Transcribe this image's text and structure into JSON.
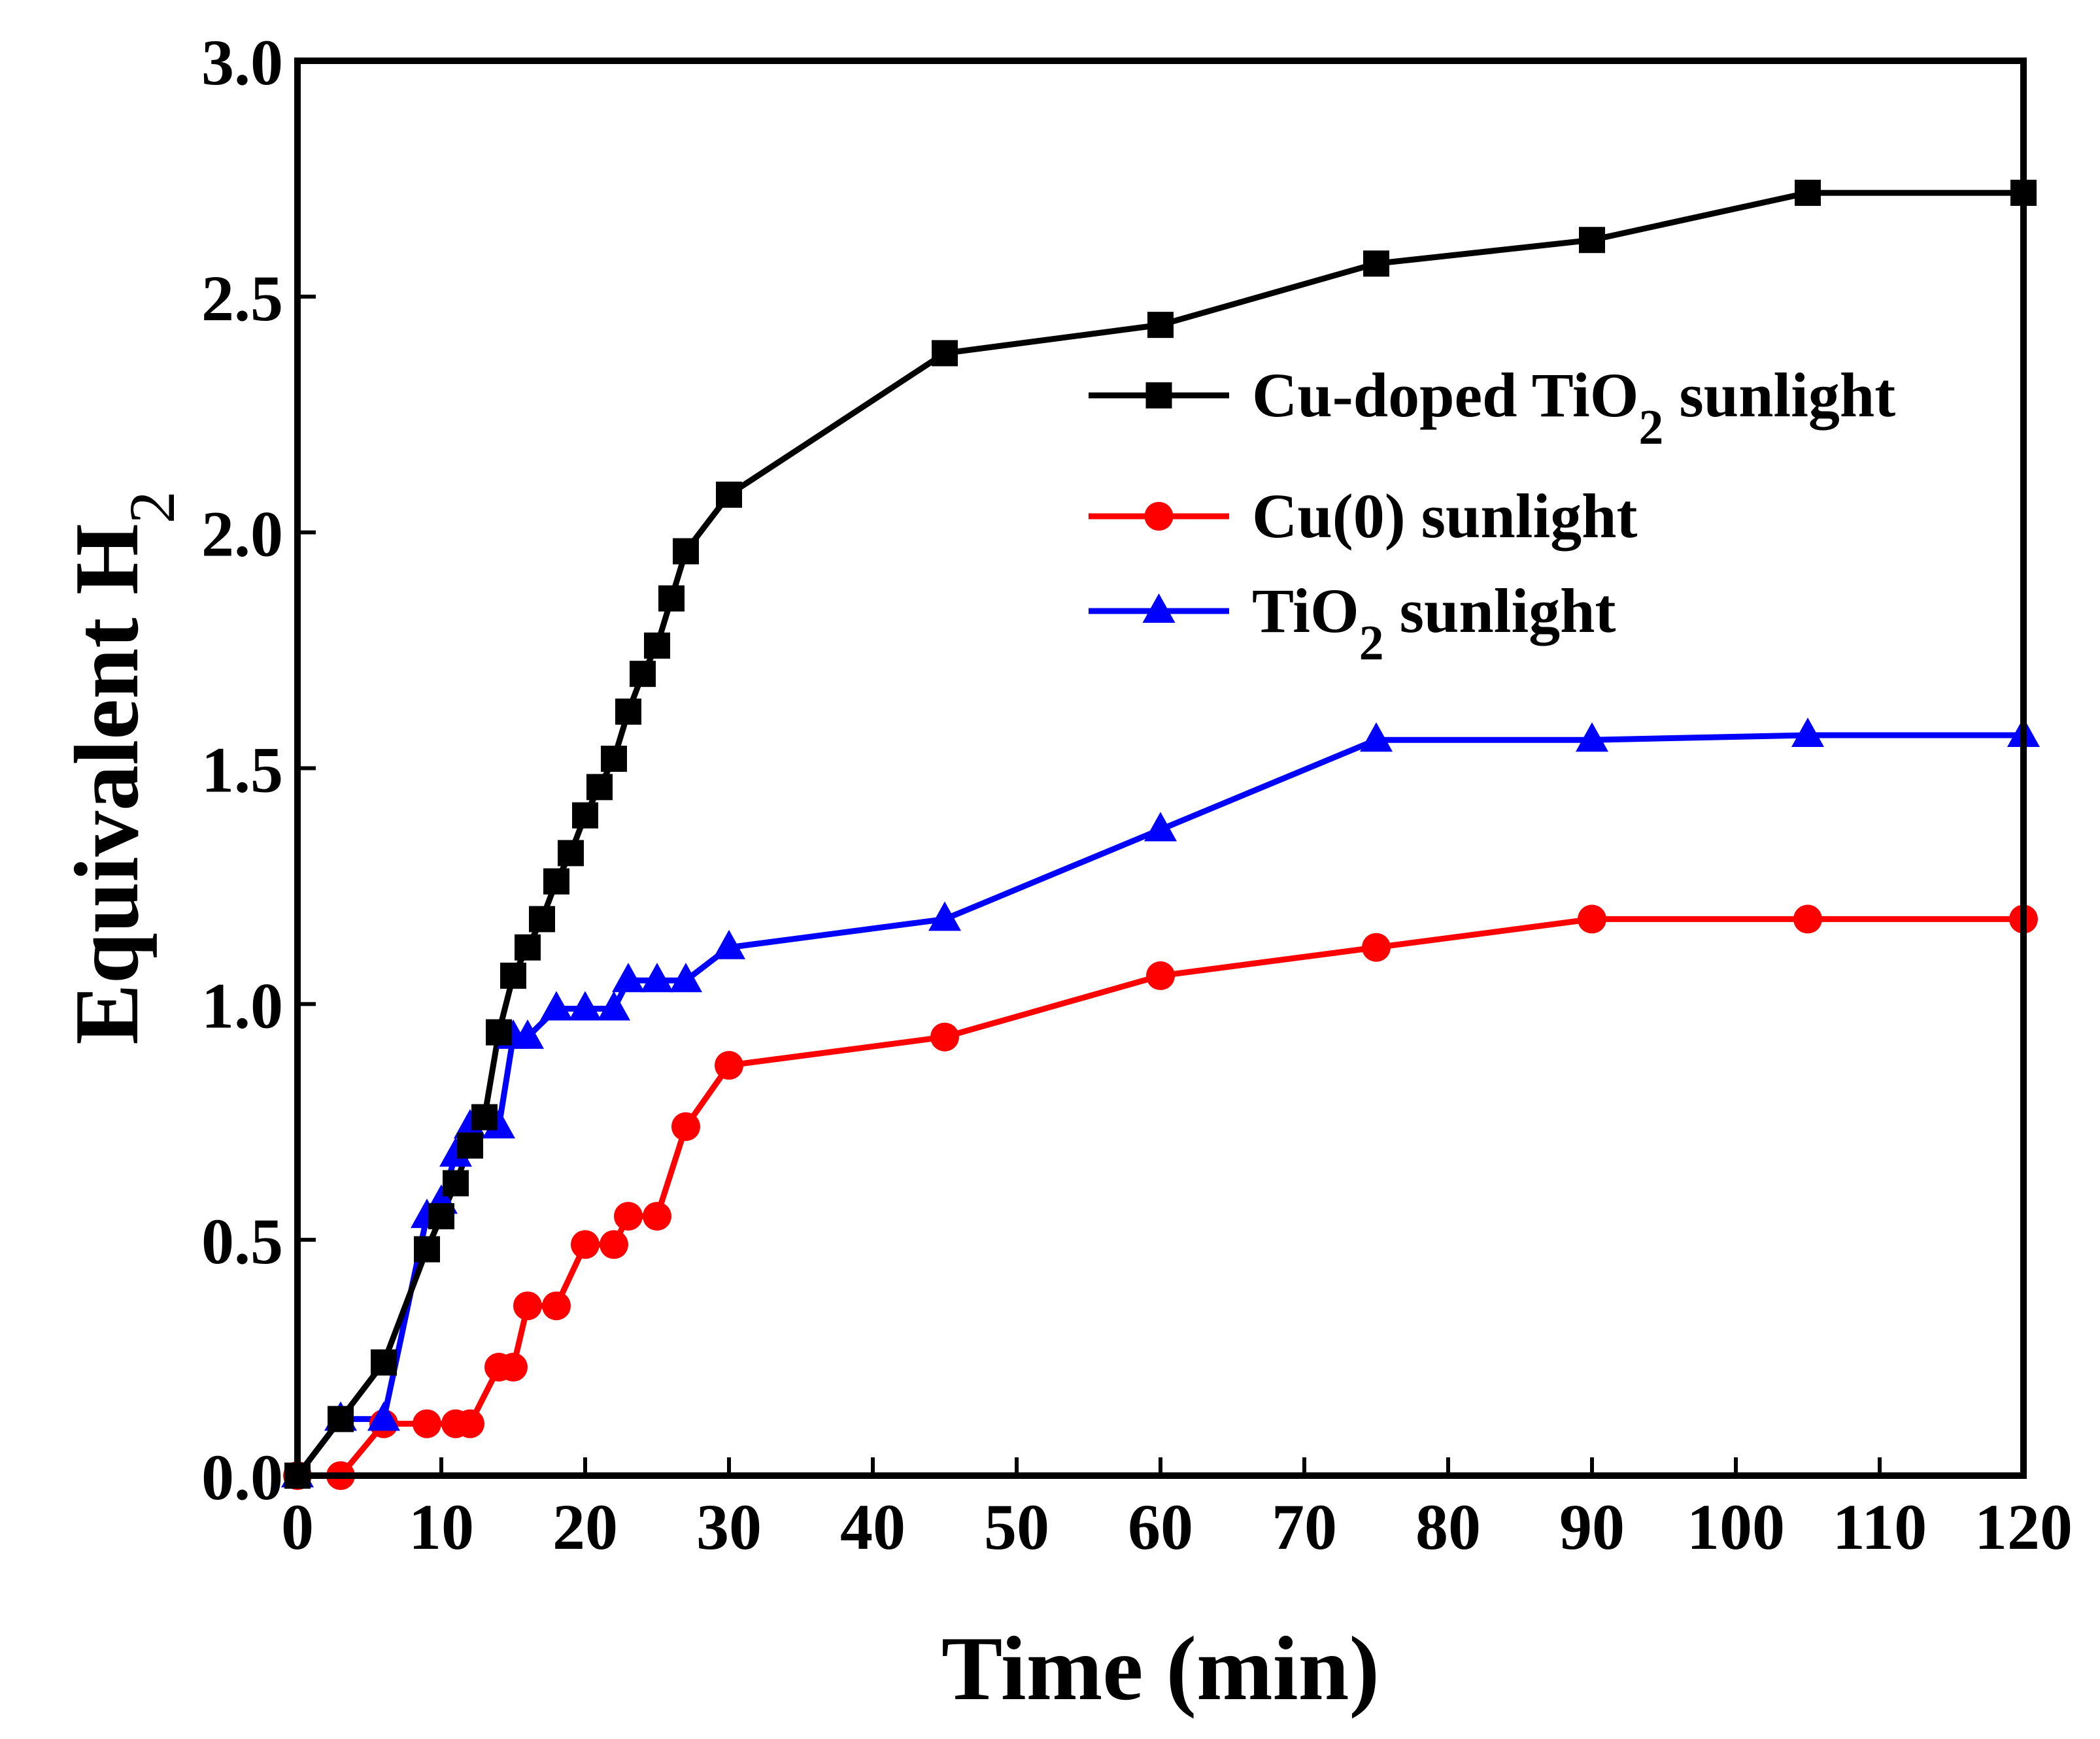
{
  "chart_data": {
    "type": "line",
    "title": "",
    "xlabel": "Time (min)",
    "ylabel": {
      "main": "Equivalent H",
      "sub": "2"
    },
    "xlim": [
      0,
      120
    ],
    "ylim": [
      0,
      3.0
    ],
    "xticks": [
      0,
      10,
      20,
      30,
      40,
      50,
      60,
      70,
      80,
      90,
      100,
      110,
      120
    ],
    "yticks": [
      "0.0",
      "0.5",
      "1.0",
      "1.5",
      "2.0",
      "2.5",
      "3.0"
    ],
    "grid": false,
    "legend_position": "upper-right",
    "series": [
      {
        "name": {
          "main": "Cu-doped TiO",
          "sub": "2",
          "rest": " sunlight"
        },
        "color": "#000000",
        "marker": "square",
        "x": [
          0,
          3,
          6,
          9,
          10,
          11,
          12,
          13,
          14,
          15,
          16,
          17,
          18,
          19,
          20,
          21,
          22,
          23,
          24,
          25,
          26,
          27,
          30,
          45,
          60,
          75,
          90,
          105,
          120
        ],
        "y": [
          0,
          0.12,
          0.24,
          0.48,
          0.55,
          0.62,
          0.7,
          0.76,
          0.94,
          1.06,
          1.12,
          1.18,
          1.26,
          1.32,
          1.4,
          1.46,
          1.52,
          1.62,
          1.7,
          1.76,
          1.86,
          1.96,
          2.08,
          2.38,
          2.44,
          2.57,
          2.62,
          2.72,
          2.72
        ]
      },
      {
        "name": {
          "main": "Cu(0) sunlight",
          "sub": "",
          "rest": ""
        },
        "color": "#ff0000",
        "marker": "circle",
        "x": [
          0,
          3,
          6,
          9,
          11,
          12,
          14,
          15,
          16,
          18,
          20,
          22,
          23,
          25,
          27,
          30,
          45,
          60,
          75,
          90,
          105,
          120
        ],
        "y": [
          0,
          0,
          0.11,
          0.11,
          0.11,
          0.11,
          0.23,
          0.23,
          0.36,
          0.36,
          0.49,
          0.49,
          0.55,
          0.55,
          0.74,
          0.87,
          0.93,
          1.06,
          1.12,
          1.18,
          1.18,
          1.18
        ]
      },
      {
        "name": {
          "main": "TiO",
          "sub": "2",
          "rest": " sunlight"
        },
        "color": "#0000ff",
        "marker": "triangle",
        "x": [
          0,
          3,
          6,
          9,
          10,
          11,
          12,
          14,
          15,
          16,
          18,
          20,
          22,
          23,
          25,
          27,
          30,
          45,
          60,
          75,
          90,
          105,
          120
        ],
        "y": [
          0,
          0.12,
          0.12,
          0.55,
          0.58,
          0.68,
          0.74,
          0.74,
          0.93,
          0.93,
          0.99,
          0.99,
          0.99,
          1.05,
          1.05,
          1.05,
          1.12,
          1.18,
          1.37,
          1.56,
          1.56,
          1.57,
          1.57
        ]
      }
    ]
  }
}
